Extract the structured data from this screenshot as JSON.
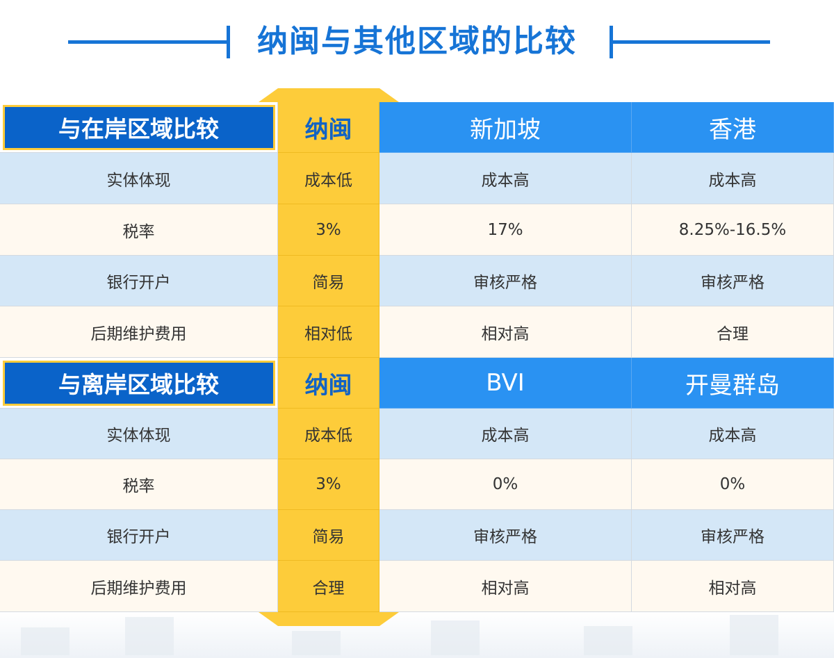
{
  "title": "纳闽与其他区域的比较",
  "colors": {
    "accent": "#1674d6",
    "header_blue": "#2a92f2",
    "header_dark": "#0a63c9",
    "highlight": "#fdcc3a",
    "row_blue": "#d4e7f7",
    "row_cream": "#fff9f0"
  },
  "sections": [
    {
      "header": {
        "label": "与在岸区域比较",
        "col1": "纳闽",
        "col2": "新加坡",
        "col3": "香港"
      },
      "rows": [
        {
          "label": "实体体现",
          "naen": "成本低",
          "col2": "成本高",
          "col3": "成本高"
        },
        {
          "label": "税率",
          "naen": "3%",
          "col2": "17%",
          "col3": "8.25%-16.5%"
        },
        {
          "label": "银行开户",
          "naen": "简易",
          "col2": "审核严格",
          "col3": "审核严格"
        },
        {
          "label": "后期维护费用",
          "naen": "相对低",
          "col2": "相对高",
          "col3": "合理"
        }
      ]
    },
    {
      "header": {
        "label": "与离岸区域比较",
        "col1": "纳闽",
        "col2": "BVI",
        "col3": "开曼群岛"
      },
      "rows": [
        {
          "label": "实体体现",
          "naen": "成本低",
          "col2": "成本高",
          "col3": "成本高"
        },
        {
          "label": "税率",
          "naen": "3%",
          "col2": "0%",
          "col3": "0%"
        },
        {
          "label": "银行开户",
          "naen": "简易",
          "col2": "审核严格",
          "col3": "审核严格"
        },
        {
          "label": "后期维护费用",
          "naen": "合理",
          "col2": "相对高",
          "col3": "相对高"
        }
      ]
    }
  ]
}
